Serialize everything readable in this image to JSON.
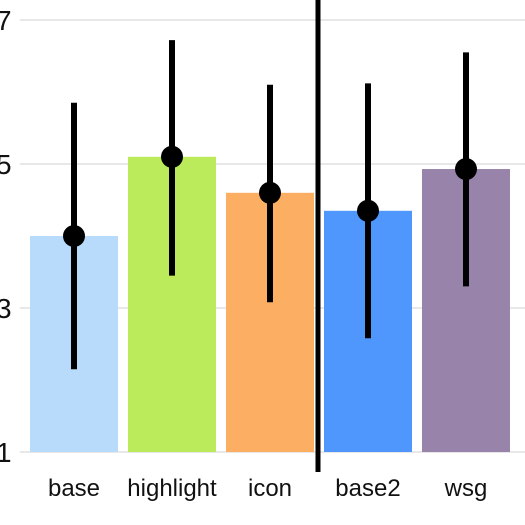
{
  "chart_data": {
    "type": "bar",
    "title": "",
    "xlabel": "",
    "ylabel": "",
    "ylim": [
      1,
      7
    ],
    "yticks": [
      "1",
      "3",
      "5",
      "7"
    ],
    "grid": "horizontal",
    "categories": [
      "base",
      "highlight",
      "icon",
      "base2",
      "wsg"
    ],
    "values": [
      4.0,
      5.1,
      4.6,
      4.35,
      4.93
    ],
    "error_low": [
      2.15,
      3.45,
      3.08,
      2.58,
      3.3
    ],
    "error_high": [
      5.85,
      6.72,
      6.1,
      6.12,
      6.55
    ],
    "colors": [
      "#b8dafb",
      "#bbeb5a",
      "#fcae62",
      "#4f97fc",
      "#9884aa"
    ],
    "separator_after_category": 2
  }
}
